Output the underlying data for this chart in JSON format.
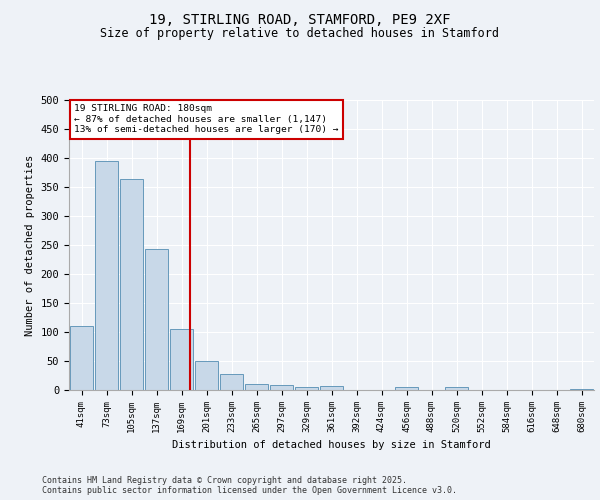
{
  "title_line1": "19, STIRLING ROAD, STAMFORD, PE9 2XF",
  "title_line2": "Size of property relative to detached houses in Stamford",
  "xlabel": "Distribution of detached houses by size in Stamford",
  "ylabel": "Number of detached properties",
  "categories": [
    "41sqm",
    "73sqm",
    "105sqm",
    "137sqm",
    "169sqm",
    "201sqm",
    "233sqm",
    "265sqm",
    "297sqm",
    "329sqm",
    "361sqm",
    "392sqm",
    "424sqm",
    "456sqm",
    "488sqm",
    "520sqm",
    "552sqm",
    "584sqm",
    "616sqm",
    "648sqm",
    "680sqm"
  ],
  "values": [
    110,
    395,
    363,
    243,
    105,
    50,
    28,
    10,
    8,
    5,
    7,
    0,
    0,
    5,
    0,
    6,
    0,
    0,
    0,
    0,
    2
  ],
  "bar_color": "#c8d8e8",
  "bar_edge_color": "#6699bb",
  "annotation_text": "19 STIRLING ROAD: 180sqm\n← 87% of detached houses are smaller (1,147)\n13% of semi-detached houses are larger (170) →",
  "annotation_box_color": "#ffffff",
  "annotation_box_edge": "#cc0000",
  "vline_color": "#cc0000",
  "ylim": [
    0,
    500
  ],
  "yticks": [
    0,
    50,
    100,
    150,
    200,
    250,
    300,
    350,
    400,
    450,
    500
  ],
  "bg_color": "#eef2f7",
  "plot_bg_color": "#eef2f7",
  "footer_text": "Contains HM Land Registry data © Crown copyright and database right 2025.\nContains public sector information licensed under the Open Government Licence v3.0."
}
